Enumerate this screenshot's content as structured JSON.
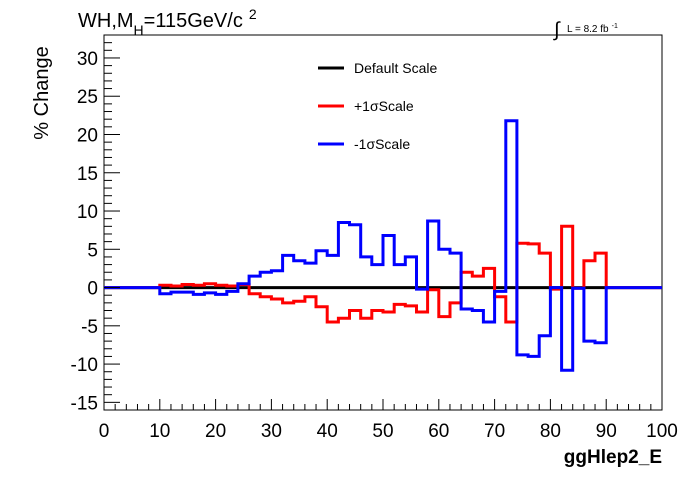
{
  "chart_data": {
    "type": "line",
    "title": "WH,M",
    "title_sub": "H",
    "title_rest": "=115GeV/c",
    "title_sup": "2",
    "lumi_label": "L = 8.2 fb",
    "lumi_sup": "-1",
    "xlabel": "ggHlep2_E",
    "ylabel": "% Change",
    "xlim": [
      0,
      100
    ],
    "ylim": [
      -16,
      33
    ],
    "xticks": [
      0,
      10,
      20,
      30,
      40,
      50,
      60,
      70,
      80,
      90,
      100
    ],
    "yticks": [
      -15,
      -10,
      -5,
      0,
      5,
      10,
      15,
      20,
      25,
      30
    ],
    "grid": false,
    "legend_position": "top-center",
    "series": [
      {
        "name": "Default Scale",
        "color": "#000000",
        "edges": [
          0,
          100
        ],
        "values": [
          0
        ]
      },
      {
        "name": "+1σScale",
        "color": "#ff0000",
        "edges": [
          0,
          10,
          12,
          14,
          16,
          18,
          20,
          22,
          24,
          26,
          28,
          30,
          32,
          34,
          36,
          38,
          40,
          42,
          44,
          46,
          48,
          50,
          52,
          54,
          56,
          58,
          60,
          62,
          64,
          66,
          68,
          70,
          72,
          74,
          76,
          78,
          80,
          82,
          84,
          86,
          88,
          90,
          100
        ],
        "values": [
          0,
          0.3,
          0.2,
          0.4,
          0.3,
          0.5,
          0.3,
          0.2,
          0.4,
          -0.8,
          -1.2,
          -1.5,
          -2.0,
          -1.8,
          -1.2,
          -2.5,
          -4.5,
          -4.0,
          -3.0,
          -4.0,
          -3.0,
          -3.2,
          -2.2,
          -2.4,
          -3.2,
          -0.3,
          -3.8,
          -2.0,
          2.0,
          1.5,
          2.5,
          -1.2,
          -4.5,
          5.8,
          5.7,
          4.5,
          -0.2,
          8.0,
          -0.1,
          3.5,
          4.5,
          0
        ]
      },
      {
        "name": "-1σScale",
        "color": "#0000ff",
        "edges": [
          0,
          10,
          12,
          14,
          16,
          18,
          20,
          22,
          24,
          26,
          28,
          30,
          32,
          34,
          36,
          38,
          40,
          42,
          44,
          46,
          48,
          50,
          52,
          54,
          56,
          58,
          60,
          62,
          64,
          66,
          68,
          70,
          72,
          74,
          76,
          78,
          80,
          82,
          84,
          86,
          88,
          90,
          100
        ],
        "values": [
          0,
          -0.8,
          -0.6,
          -0.6,
          -0.9,
          -0.7,
          -0.9,
          -0.5,
          0.5,
          1.5,
          2.0,
          2.2,
          4.2,
          3.5,
          3.2,
          4.8,
          4.2,
          8.5,
          8.2,
          4.0,
          3.0,
          6.8,
          3.0,
          4.0,
          -0.2,
          8.7,
          5.0,
          4.5,
          -2.8,
          -3.0,
          -4.5,
          -0.5,
          21.8,
          -8.8,
          -9.0,
          -6.3,
          0,
          -10.8,
          -0.1,
          -7.0,
          -7.2,
          0
        ]
      }
    ]
  }
}
